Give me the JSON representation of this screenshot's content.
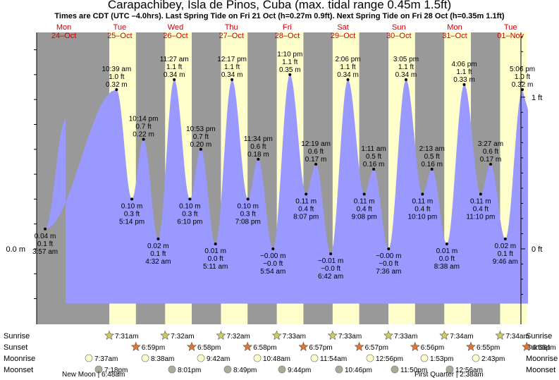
{
  "title": "Carapachibey, Isla de Pinos, Cuba (max. tidal range 0.45m 1.5ft)",
  "subtitle": "Times are CDT (UTC –4.0hrs). Last Spring Tide on Fri 21 Oct (h=0.27m 0.9ft). Next Spring Tide on Fri 28 Oct (h=0.35m 1.1ft)",
  "colors": {
    "day": "#ffffcc",
    "night": "#999999",
    "water": "#9999ff",
    "day_label": "#cc0000"
  },
  "chart_data": {
    "type": "area",
    "days": [
      {
        "dow": "Mon",
        "date": "24–Oct"
      },
      {
        "dow": "Tue",
        "date": "25–Oct"
      },
      {
        "dow": "Wed",
        "date": "26–Oct"
      },
      {
        "dow": "Thu",
        "date": "27–Oct"
      },
      {
        "dow": "Fri",
        "date": "28–Oct"
      },
      {
        "dow": "Sat",
        "date": "29–Oct"
      },
      {
        "dow": "Sun",
        "date": "30–Oct"
      },
      {
        "dow": "Mon",
        "date": "31–Oct"
      },
      {
        "dow": "Tue",
        "date": "01–Nov"
      }
    ],
    "y_left_label": "0.0 m",
    "y_right_labels": [
      "1 ft",
      "0 ft"
    ],
    "tides": [
      {
        "t": "3:57 am",
        "m": "0.04 m",
        "ft": "0.1 ft",
        "type": "low",
        "day": 0,
        "hours": 3.95,
        "h": 0.04
      },
      {
        "t": "10:39 am",
        "m": "0.32 m",
        "ft": "1.0 ft",
        "type": "high",
        "day": 1,
        "hours": 10.65,
        "h": 0.32
      },
      {
        "t": "5:14 pm",
        "m": "0.10 m",
        "ft": "0.3 ft",
        "type": "low",
        "day": 1,
        "hours": 17.23,
        "h": 0.1
      },
      {
        "t": "10:14 pm",
        "m": "0.22 m",
        "ft": "0.7 ft",
        "type": "high",
        "day": 1,
        "hours": 22.23,
        "h": 0.22
      },
      {
        "t": "4:32 am",
        "m": "0.02 m",
        "ft": "0.1 ft",
        "type": "low",
        "day": 1,
        "hours": 28.53,
        "h": 0.02
      },
      {
        "t": "11:27 am",
        "m": "0.34 m",
        "ft": "1.1 ft",
        "type": "high",
        "day": 2,
        "hours": 11.45,
        "h": 0.34
      },
      {
        "t": "6:10 pm",
        "m": "0.10 m",
        "ft": "0.3 ft",
        "type": "low",
        "day": 2,
        "hours": 18.17,
        "h": 0.1
      },
      {
        "t": "10:53 pm",
        "m": "0.20 m",
        "ft": "0.7 ft",
        "type": "high",
        "day": 2,
        "hours": 22.88,
        "h": 0.2
      },
      {
        "t": "5:11 am",
        "m": "0.01 m",
        "ft": "0.0 ft",
        "type": "low",
        "day": 3,
        "hours": 5.18,
        "h": 0.01
      },
      {
        "t": "12:17 pm",
        "m": "0.34 m",
        "ft": "1.1 ft",
        "type": "high",
        "day": 3,
        "hours": 12.28,
        "h": 0.34
      },
      {
        "t": "7:08 pm",
        "m": "0.10 m",
        "ft": "0.3 ft",
        "type": "low",
        "day": 3,
        "hours": 19.13,
        "h": 0.1
      },
      {
        "t": "11:34 pm",
        "m": "0.18 m",
        "ft": "0.6 ft",
        "type": "high",
        "day": 3,
        "hours": 23.57,
        "h": 0.18
      },
      {
        "t": "5:54 am",
        "m": "−0.00 m",
        "ft": "−0.0 ft",
        "type": "low",
        "day": 4,
        "hours": 5.9,
        "h": 0.0
      },
      {
        "t": "1:10 pm",
        "m": "0.35 m",
        "ft": "1.1 ft",
        "type": "high",
        "day": 4,
        "hours": 13.17,
        "h": 0.35
      },
      {
        "t": "8:07 pm",
        "m": "0.11 m",
        "ft": "0.4 ft",
        "type": "low",
        "day": 4,
        "hours": 20.12,
        "h": 0.11
      },
      {
        "t": "12:19 am",
        "m": "0.17 m",
        "ft": "0.6 ft",
        "type": "high",
        "day": 5,
        "hours": 0.32,
        "h": 0.17
      },
      {
        "t": "6:42 am",
        "m": "−0.01 m",
        "ft": "−0.0 ft",
        "type": "low",
        "day": 5,
        "hours": 6.7,
        "h": -0.01
      },
      {
        "t": "2:06 pm",
        "m": "0.34 m",
        "ft": "1.1 ft",
        "type": "high",
        "day": 5,
        "hours": 14.1,
        "h": 0.34
      },
      {
        "t": "9:08 pm",
        "m": "0.11 m",
        "ft": "0.4 ft",
        "type": "low",
        "day": 5,
        "hours": 21.13,
        "h": 0.11
      },
      {
        "t": "1:11 am",
        "m": "0.16 m",
        "ft": "0.5 ft",
        "type": "high",
        "day": 6,
        "hours": 1.18,
        "h": 0.16
      },
      {
        "t": "7:36 am",
        "m": "−0.00 m",
        "ft": "−0.0 ft",
        "type": "low",
        "day": 6,
        "hours": 7.6,
        "h": 0.0
      },
      {
        "t": "3:05 pm",
        "m": "0.34 m",
        "ft": "1.1 ft",
        "type": "high",
        "day": 6,
        "hours": 15.08,
        "h": 0.34
      },
      {
        "t": "10:10 pm",
        "m": "0.11 m",
        "ft": "0.4 ft",
        "type": "low",
        "day": 6,
        "hours": 22.17,
        "h": 0.11
      },
      {
        "t": "2:13 am",
        "m": "0.16 m",
        "ft": "0.5 ft",
        "type": "high",
        "day": 7,
        "hours": 2.22,
        "h": 0.16
      },
      {
        "t": "8:38 am",
        "m": "0.01 m",
        "ft": "0.0 ft",
        "type": "low",
        "day": 7,
        "hours": 8.63,
        "h": 0.01
      },
      {
        "t": "4:06 pm",
        "m": "0.33 m",
        "ft": "1.1 ft",
        "type": "high",
        "day": 7,
        "hours": 16.1,
        "h": 0.33
      },
      {
        "t": "11:10 pm",
        "m": "0.11 m",
        "ft": "0.4 ft",
        "type": "low",
        "day": 7,
        "hours": 23.17,
        "h": 0.11
      },
      {
        "t": "3:27 am",
        "m": "0.17 m",
        "ft": "0.6 ft",
        "type": "high",
        "day": 8,
        "hours": 3.45,
        "h": 0.17
      },
      {
        "t": "9:46 am",
        "m": "0.02 m",
        "ft": "0.1 ft",
        "type": "low",
        "day": 8,
        "hours": 9.77,
        "h": 0.02
      },
      {
        "t": "5:06 pm",
        "m": "0.32 m",
        "ft": "1.0 ft",
        "type": "high",
        "day": 8,
        "hours": 17.1,
        "h": 0.32
      }
    ],
    "astro_row_labels": [
      "Sunrise",
      "Sunset",
      "Moonrise",
      "Moonset"
    ],
    "sunrise": [
      "7:31am",
      "7:32am",
      "7:32am",
      "7:33am",
      "7:33am",
      "7:33am",
      "7:34am",
      "7:34am"
    ],
    "sunset": [
      "6:59pm",
      "6:58pm",
      "6:58pm",
      "6:57pm",
      "6:57pm",
      "6:56pm",
      "6:55pm",
      "6:55pm"
    ],
    "moonrise": [
      "7:37am",
      "8:38am",
      "9:42am",
      "10:48am",
      "11:54am",
      "12:56pm",
      "1:53pm",
      "2:43pm"
    ],
    "moonset": [
      "7:18pm",
      "8:01pm",
      "8:49pm",
      "9:44pm",
      "10:46pm",
      "11:50pm",
      "12:56am"
    ],
    "moon_phases": [
      {
        "label": "New Moon",
        "time": "6:48am"
      },
      {
        "label": "First Quarter",
        "time": "2:38am"
      }
    ]
  }
}
